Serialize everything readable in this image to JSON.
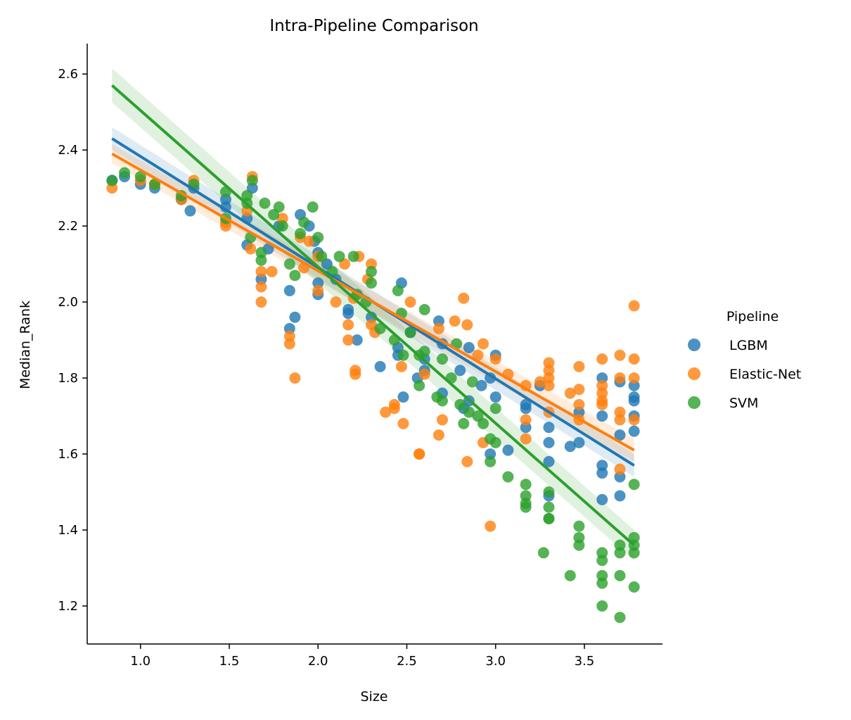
{
  "chart_data": {
    "type": "scatter",
    "title": "Intra-Pipeline Comparison",
    "xlabel": "Size",
    "ylabel": "Median_Rank",
    "xlim": [
      0.7,
      3.94
    ],
    "ylim": [
      1.1,
      2.68
    ],
    "xticks": [
      1.0,
      1.5,
      2.0,
      2.5,
      3.0,
      3.5
    ],
    "xtick_labels": [
      "1.0",
      "1.5",
      "2.0",
      "2.5",
      "3.0",
      "3.5"
    ],
    "yticks": [
      1.2,
      1.4,
      1.6,
      1.8,
      2.0,
      2.2,
      2.4,
      2.6
    ],
    "ytick_labels": [
      "1.2",
      "1.4",
      "1.6",
      "1.8",
      "2.0",
      "2.2",
      "2.4",
      "2.6"
    ],
    "grid": false,
    "legend": {
      "title": "Pipeline",
      "placement": "right"
    },
    "series": [
      {
        "name": "LGBM",
        "color": "#1f77b4",
        "fit": {
          "x": [
            0.84,
            3.78
          ],
          "y": [
            2.43,
            1.57
          ],
          "ci_halfwidth": [
            0.03,
            0.03
          ]
        },
        "points": [
          [
            0.84,
            2.32
          ],
          [
            0.91,
            2.33
          ],
          [
            1.0,
            2.31
          ],
          [
            1.08,
            2.3
          ],
          [
            1.23,
            2.27
          ],
          [
            1.28,
            2.24
          ],
          [
            1.3,
            2.3
          ],
          [
            1.48,
            2.27
          ],
          [
            1.48,
            2.25
          ],
          [
            1.6,
            2.22
          ],
          [
            1.6,
            2.15
          ],
          [
            1.63,
            2.3
          ],
          [
            1.68,
            2.06
          ],
          [
            1.72,
            2.14
          ],
          [
            1.78,
            2.2
          ],
          [
            1.84,
            2.03
          ],
          [
            1.84,
            1.93
          ],
          [
            1.87,
            1.96
          ],
          [
            1.9,
            2.23
          ],
          [
            1.95,
            2.2
          ],
          [
            1.98,
            2.16
          ],
          [
            2.0,
            2.05
          ],
          [
            2.0,
            2.02
          ],
          [
            2.0,
            2.13
          ],
          [
            2.05,
            2.1
          ],
          [
            2.1,
            2.06
          ],
          [
            2.17,
            1.97
          ],
          [
            2.17,
            1.98
          ],
          [
            2.22,
            1.9
          ],
          [
            2.3,
            1.96
          ],
          [
            2.35,
            1.83
          ],
          [
            2.45,
            1.88
          ],
          [
            2.45,
            1.86
          ],
          [
            2.47,
            2.05
          ],
          [
            2.48,
            1.75
          ],
          [
            2.52,
            1.92
          ],
          [
            2.56,
            1.8
          ],
          [
            2.6,
            1.82
          ],
          [
            2.6,
            1.85
          ],
          [
            2.68,
            1.95
          ],
          [
            2.7,
            1.76
          ],
          [
            2.7,
            1.89
          ],
          [
            2.8,
            1.82
          ],
          [
            2.82,
            1.72
          ],
          [
            2.85,
            1.74
          ],
          [
            2.85,
            1.88
          ],
          [
            2.92,
            1.78
          ],
          [
            2.97,
            1.6
          ],
          [
            2.97,
            1.8
          ],
          [
            3.0,
            1.86
          ],
          [
            3.0,
            1.75
          ],
          [
            3.07,
            1.61
          ],
          [
            3.17,
            1.72
          ],
          [
            3.17,
            1.73
          ],
          [
            3.17,
            1.67
          ],
          [
            3.25,
            1.78
          ],
          [
            3.3,
            1.67
          ],
          [
            3.3,
            1.63
          ],
          [
            3.3,
            1.58
          ],
          [
            3.3,
            1.49
          ],
          [
            3.42,
            1.62
          ],
          [
            3.47,
            1.63
          ],
          [
            3.47,
            1.71
          ],
          [
            3.6,
            1.8
          ],
          [
            3.6,
            1.7
          ],
          [
            3.6,
            1.57
          ],
          [
            3.6,
            1.55
          ],
          [
            3.6,
            1.48
          ],
          [
            3.7,
            1.79
          ],
          [
            3.7,
            1.65
          ],
          [
            3.7,
            1.54
          ],
          [
            3.7,
            1.49
          ],
          [
            3.78,
            1.78
          ],
          [
            3.78,
            1.75
          ],
          [
            3.78,
            1.74
          ],
          [
            3.78,
            1.7
          ],
          [
            3.78,
            1.66
          ]
        ]
      },
      {
        "name": "Elastic-Net",
        "color": "#ff7f0e",
        "fit": {
          "x": [
            0.84,
            3.78
          ],
          "y": [
            2.39,
            1.61
          ],
          "ci_halfwidth": [
            0.025,
            0.03
          ]
        },
        "points": [
          [
            0.84,
            2.3
          ],
          [
            1.0,
            2.32
          ],
          [
            1.08,
            2.31
          ],
          [
            1.23,
            2.27
          ],
          [
            1.3,
            2.32
          ],
          [
            1.48,
            2.2
          ],
          [
            1.48,
            2.21
          ],
          [
            1.6,
            2.24
          ],
          [
            1.62,
            2.14
          ],
          [
            1.63,
            2.33
          ],
          [
            1.68,
            2.08
          ],
          [
            1.68,
            2.04
          ],
          [
            1.68,
            2.0
          ],
          [
            1.74,
            2.08
          ],
          [
            1.8,
            2.22
          ],
          [
            1.84,
            1.91
          ],
          [
            1.84,
            1.89
          ],
          [
            1.87,
            1.8
          ],
          [
            1.9,
            2.17
          ],
          [
            1.92,
            2.09
          ],
          [
            1.95,
            2.16
          ],
          [
            2.0,
            2.03
          ],
          [
            2.0,
            2.12
          ],
          [
            2.1,
            2.0
          ],
          [
            2.15,
            2.1
          ],
          [
            2.17,
            1.94
          ],
          [
            2.17,
            1.9
          ],
          [
            2.2,
            2.01
          ],
          [
            2.21,
            1.82
          ],
          [
            2.21,
            1.81
          ],
          [
            2.23,
            2.12
          ],
          [
            2.28,
            2.06
          ],
          [
            2.3,
            2.1
          ],
          [
            2.3,
            1.94
          ],
          [
            2.32,
            1.92
          ],
          [
            2.38,
            1.71
          ],
          [
            2.43,
            1.73
          ],
          [
            2.43,
            1.72
          ],
          [
            2.47,
            1.83
          ],
          [
            2.48,
            1.68
          ],
          [
            2.52,
            2.0
          ],
          [
            2.57,
            1.6
          ],
          [
            2.57,
            1.6
          ],
          [
            2.6,
            1.81
          ],
          [
            2.68,
            1.93
          ],
          [
            2.68,
            1.65
          ],
          [
            2.7,
            1.69
          ],
          [
            2.77,
            1.95
          ],
          [
            2.82,
            2.01
          ],
          [
            2.84,
            1.94
          ],
          [
            2.84,
            1.58
          ],
          [
            2.9,
            1.86
          ],
          [
            2.93,
            1.89
          ],
          [
            2.93,
            1.63
          ],
          [
            2.97,
            1.41
          ],
          [
            3.0,
            1.85
          ],
          [
            3.07,
            1.81
          ],
          [
            3.17,
            1.78
          ],
          [
            3.17,
            1.69
          ],
          [
            3.17,
            1.64
          ],
          [
            3.25,
            1.79
          ],
          [
            3.3,
            1.84
          ],
          [
            3.3,
            1.82
          ],
          [
            3.3,
            1.8
          ],
          [
            3.3,
            1.78
          ],
          [
            3.3,
            1.71
          ],
          [
            3.42,
            1.76
          ],
          [
            3.47,
            1.83
          ],
          [
            3.47,
            1.77
          ],
          [
            3.47,
            1.73
          ],
          [
            3.47,
            1.69
          ],
          [
            3.6,
            1.85
          ],
          [
            3.6,
            1.78
          ],
          [
            3.6,
            1.76
          ],
          [
            3.6,
            1.74
          ],
          [
            3.6,
            1.73
          ],
          [
            3.7,
            1.86
          ],
          [
            3.7,
            1.8
          ],
          [
            3.7,
            1.71
          ],
          [
            3.7,
            1.69
          ],
          [
            3.7,
            1.56
          ],
          [
            3.78,
            1.99
          ],
          [
            3.78,
            1.85
          ],
          [
            3.78,
            1.8
          ],
          [
            3.78,
            1.69
          ]
        ]
      },
      {
        "name": "SVM",
        "color": "#2ca02c",
        "fit": {
          "x": [
            0.84,
            3.78
          ],
          "y": [
            2.57,
            1.36
          ],
          "ci_halfwidth": [
            0.045,
            0.04
          ]
        },
        "points": [
          [
            0.84,
            2.32
          ],
          [
            0.91,
            2.34
          ],
          [
            1.0,
            2.33
          ],
          [
            1.08,
            2.31
          ],
          [
            1.23,
            2.28
          ],
          [
            1.3,
            2.31
          ],
          [
            1.48,
            2.29
          ],
          [
            1.48,
            2.22
          ],
          [
            1.6,
            2.28
          ],
          [
            1.6,
            2.26
          ],
          [
            1.62,
            2.17
          ],
          [
            1.63,
            2.32
          ],
          [
            1.68,
            2.13
          ],
          [
            1.68,
            2.11
          ],
          [
            1.7,
            2.26
          ],
          [
            1.75,
            2.23
          ],
          [
            1.78,
            2.25
          ],
          [
            1.8,
            2.2
          ],
          [
            1.84,
            2.1
          ],
          [
            1.87,
            2.07
          ],
          [
            1.9,
            2.18
          ],
          [
            1.92,
            2.21
          ],
          [
            1.97,
            2.25
          ],
          [
            2.0,
            2.17
          ],
          [
            2.02,
            2.12
          ],
          [
            2.08,
            2.08
          ],
          [
            2.12,
            2.12
          ],
          [
            2.2,
            2.12
          ],
          [
            2.22,
            2.02
          ],
          [
            2.27,
            2.0
          ],
          [
            2.3,
            2.08
          ],
          [
            2.3,
            2.05
          ],
          [
            2.35,
            1.93
          ],
          [
            2.43,
            1.9
          ],
          [
            2.45,
            2.03
          ],
          [
            2.47,
            1.97
          ],
          [
            2.48,
            1.86
          ],
          [
            2.52,
            1.92
          ],
          [
            2.57,
            1.78
          ],
          [
            2.57,
            1.86
          ],
          [
            2.6,
            1.98
          ],
          [
            2.6,
            1.87
          ],
          [
            2.67,
            1.75
          ],
          [
            2.7,
            1.85
          ],
          [
            2.7,
            1.74
          ],
          [
            2.75,
            1.8
          ],
          [
            2.78,
            1.89
          ],
          [
            2.8,
            1.73
          ],
          [
            2.82,
            1.68
          ],
          [
            2.85,
            1.71
          ],
          [
            2.87,
            1.79
          ],
          [
            2.9,
            1.7
          ],
          [
            2.93,
            1.68
          ],
          [
            2.97,
            1.58
          ],
          [
            2.97,
            1.64
          ],
          [
            3.0,
            1.72
          ],
          [
            3.0,
            1.63
          ],
          [
            3.07,
            1.54
          ],
          [
            3.17,
            1.52
          ],
          [
            3.17,
            1.49
          ],
          [
            3.17,
            1.47
          ],
          [
            3.17,
            1.46
          ],
          [
            3.27,
            1.34
          ],
          [
            3.3,
            1.5
          ],
          [
            3.3,
            1.46
          ],
          [
            3.3,
            1.43
          ],
          [
            3.3,
            1.43
          ],
          [
            3.42,
            1.28
          ],
          [
            3.47,
            1.41
          ],
          [
            3.47,
            1.38
          ],
          [
            3.47,
            1.36
          ],
          [
            3.6,
            1.34
          ],
          [
            3.6,
            1.32
          ],
          [
            3.6,
            1.28
          ],
          [
            3.6,
            1.26
          ],
          [
            3.6,
            1.2
          ],
          [
            3.7,
            1.36
          ],
          [
            3.7,
            1.34
          ],
          [
            3.7,
            1.28
          ],
          [
            3.7,
            1.17
          ],
          [
            3.78,
            1.52
          ],
          [
            3.78,
            1.38
          ],
          [
            3.78,
            1.36
          ],
          [
            3.78,
            1.34
          ],
          [
            3.78,
            1.25
          ]
        ]
      }
    ]
  }
}
